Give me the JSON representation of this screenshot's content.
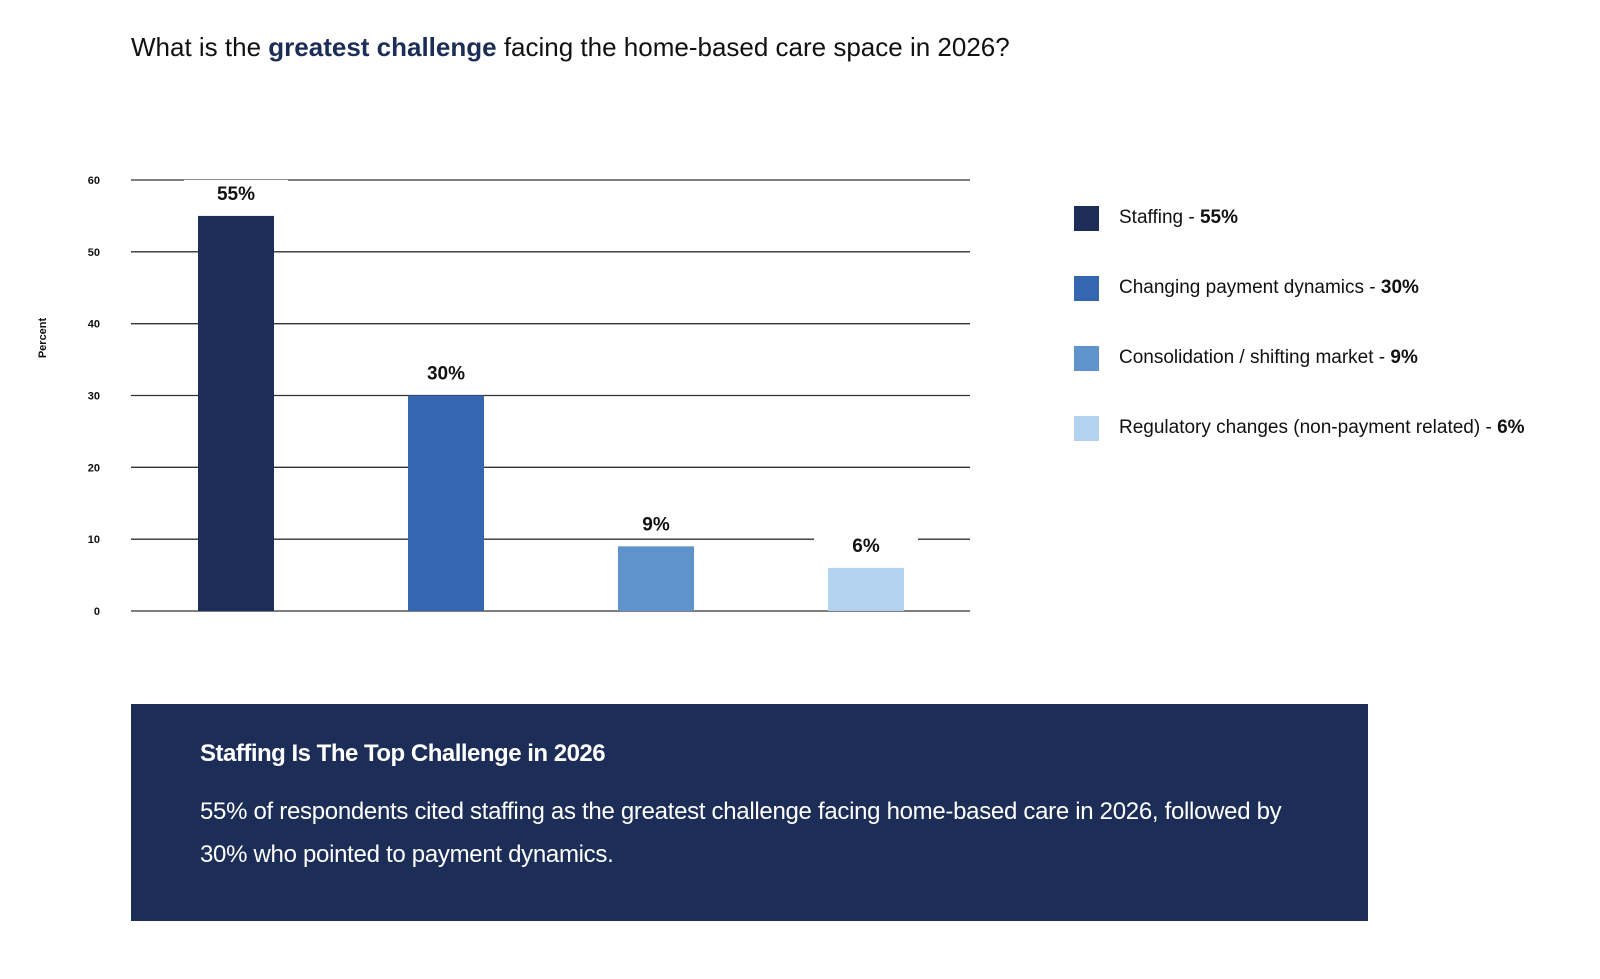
{
  "title": {
    "prefix": "What is the ",
    "highlight": "greatest challenge",
    "suffix": " facing the home-based care space in 2026?"
  },
  "chart_data": {
    "type": "bar",
    "title": "What is the greatest challenge facing the home-based care space in 2026?",
    "categories": [
      "Staffing",
      "Changing payment dynamics",
      "Consolidation / shifting market",
      "Regulatory changes (non-payment related)"
    ],
    "values": [
      55,
      30,
      9,
      6
    ],
    "data_labels": [
      "55%",
      "30%",
      "9%",
      "6%"
    ],
    "colors": [
      "#1c2e57",
      "#3566b0",
      "#5f93cc",
      "#b3d2ef"
    ],
    "xlabel": "",
    "ylabel": "Percent",
    "ylim": [
      0,
      60
    ],
    "yticks": [
      0,
      10,
      20,
      30,
      40,
      50,
      60
    ],
    "grid": true,
    "legend_placement": "right",
    "legend": [
      {
        "label": "Staffing - ",
        "value": "55%"
      },
      {
        "label": "Changing payment dynamics - ",
        "value": "30%"
      },
      {
        "label": "Consolidation / shifting market - ",
        "value": "9%"
      },
      {
        "label": "Regulatory changes (non-payment related) - ",
        "value": "6%"
      }
    ]
  },
  "summary": {
    "heading": "Staffing Is The Top Challenge in 2026",
    "body": "55% of respondents cited staffing as the greatest challenge facing home-based care in 2026, followed by 30% who pointed to payment dynamics."
  }
}
